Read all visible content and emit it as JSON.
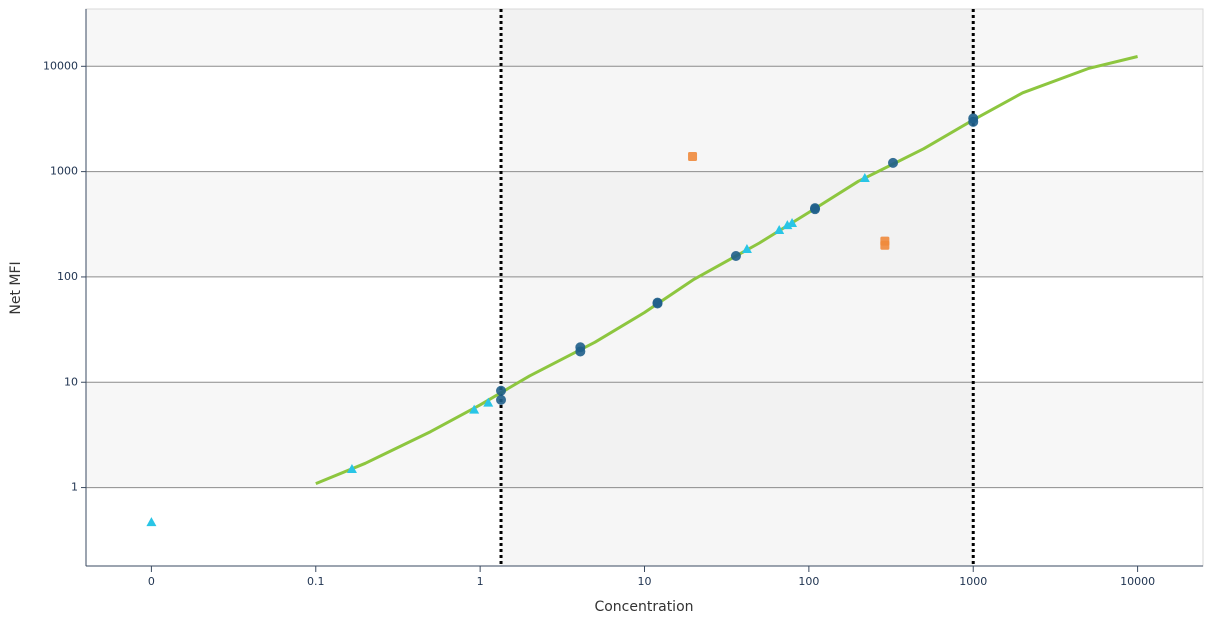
{
  "chart_data": {
    "type": "scatter",
    "x_label": "Concentration",
    "y_label": "Net MFI",
    "xscale": "log",
    "yscale": "log",
    "xlim": [
      0.004,
      25000
    ],
    "ylim": [
      0.18,
      35000
    ],
    "xticks": [
      {
        "value": 0.01,
        "label": "0"
      },
      0.1,
      1,
      10,
      100,
      1000,
      10000
    ],
    "yticks": [
      1,
      10,
      100,
      1000,
      10000
    ],
    "grid": true,
    "band_color": "#f7f7f7",
    "range_lines": {
      "x": [
        1.34,
        1000
      ],
      "color": "#000000",
      "fill": "#efefef"
    },
    "series": [
      {
        "marker": "line",
        "color": "#8dc63f",
        "x": [
          0.1,
          0.2,
          0.5,
          1,
          2,
          5,
          10,
          20,
          50,
          100,
          200,
          500,
          1000,
          2000,
          5000,
          10000
        ],
        "y": [
          1.09,
          1.7,
          3.4,
          6.1,
          11.5,
          24,
          46,
          95,
          210,
          410,
          810,
          1650,
          3100,
          5600,
          9500,
          12400
        ]
      },
      {
        "marker": "triangle",
        "color": "#29c5e6",
        "x": [
          0.01,
          0.166,
          0.92,
          1.12,
          42,
          66,
          74,
          79,
          219
        ],
        "y": [
          0.47,
          1.5,
          5.5,
          6.4,
          184,
          279,
          310,
          325,
          870
        ]
      },
      {
        "marker": "square",
        "color": "#f08a3c",
        "x": [
          19.6,
          290,
          290
        ],
        "y": [
          1390,
          219,
          200
        ]
      },
      {
        "marker": "circle",
        "color": "#1f5f8b",
        "x": [
          1.34,
          1.34,
          4.07,
          4.07,
          12,
          12,
          36,
          109,
          109,
          325,
          1000,
          1000
        ],
        "y": [
          8.3,
          6.8,
          21.5,
          19.6,
          57,
          56,
          158,
          450,
          440,
          1210,
          3200,
          2970
        ]
      }
    ]
  }
}
